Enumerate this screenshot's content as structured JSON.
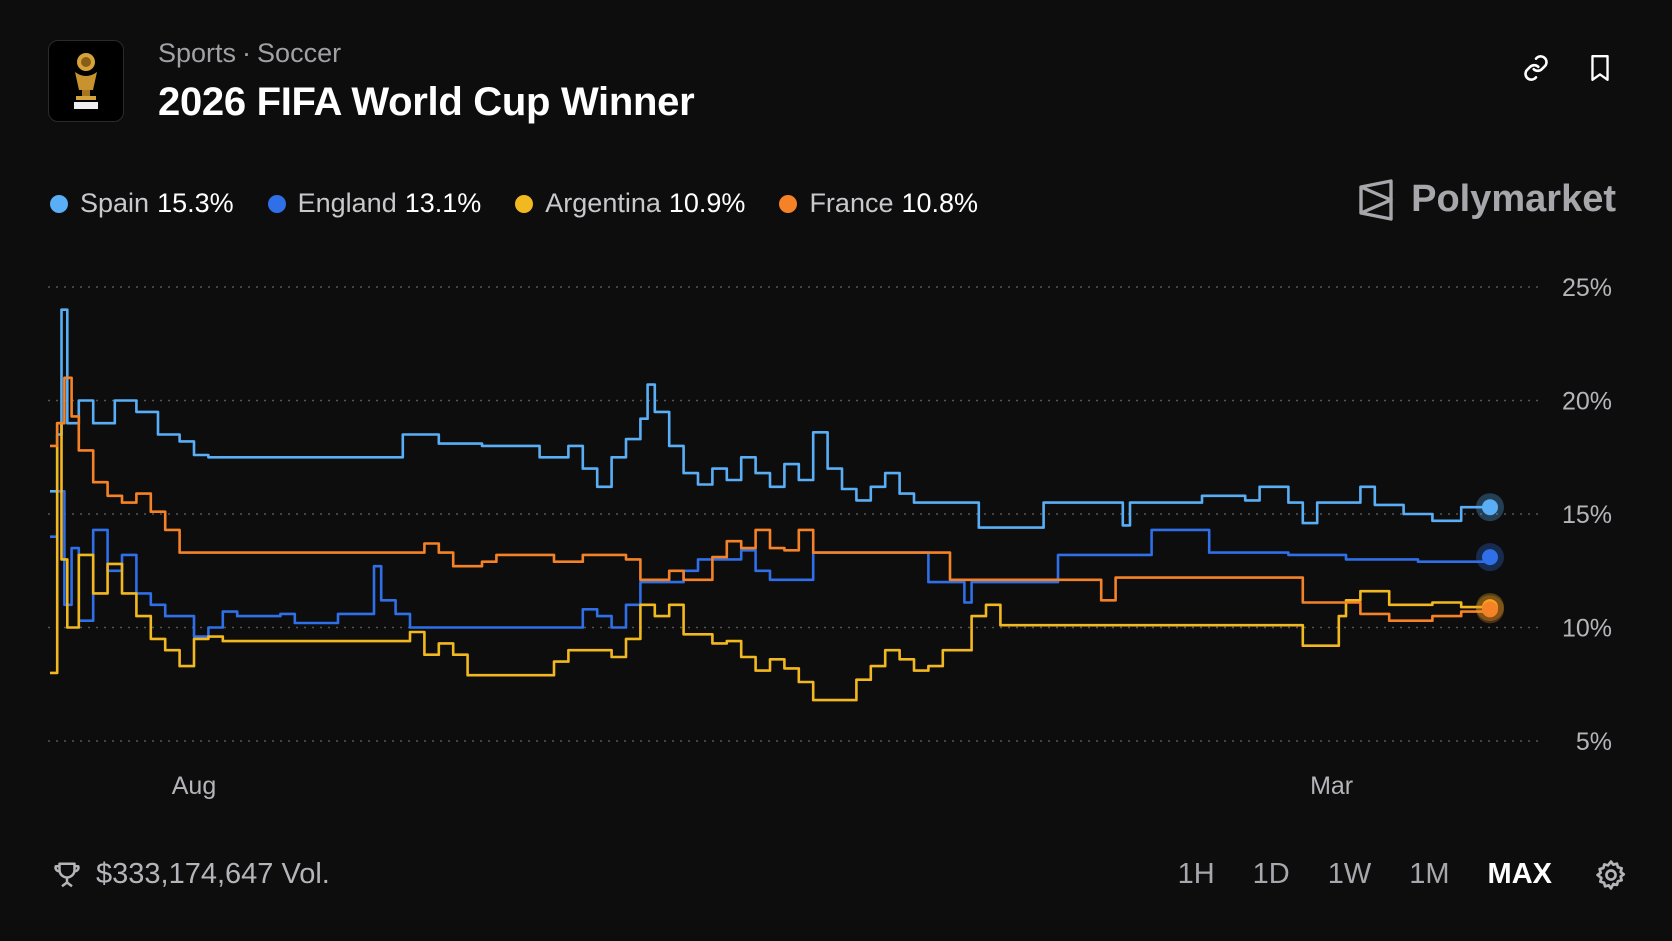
{
  "header": {
    "breadcrumb": [
      "Sports",
      "Soccer"
    ],
    "breadcrumb_separator": "·",
    "title": "2026 FIFA World Cup Winner",
    "icon": "trophy-icon",
    "actions": [
      {
        "name": "link-icon"
      },
      {
        "name": "bookmark-icon"
      }
    ]
  },
  "brand": {
    "name": "Polymarket",
    "icon": "polymarket-logo-icon"
  },
  "legend": [
    {
      "name": "Spain",
      "value": "15.3%",
      "color": "#5aaef5"
    },
    {
      "name": "England",
      "value": "13.1%",
      "color": "#2f6fe8"
    },
    {
      "name": "Argentina",
      "value": "10.9%",
      "color": "#f2b81f"
    },
    {
      "name": "France",
      "value": "10.8%",
      "color": "#f58226"
    }
  ],
  "footer": {
    "volume": "$333,174,647 Vol.",
    "volume_icon": "trophy-outline-icon",
    "ranges": [
      "1H",
      "1D",
      "1W",
      "1M",
      "MAX"
    ],
    "active_range": "MAX",
    "settings_icon": "gear-icon"
  },
  "chart_data": {
    "type": "line",
    "x_ticks": [
      {
        "label": "Aug",
        "x": 0.1
      },
      {
        "label": "Mar",
        "x": 0.89
      }
    ],
    "y_ticks": [
      "5%",
      "10%",
      "15%",
      "20%",
      "25%"
    ],
    "ylim": [
      5,
      25
    ],
    "xlim": [
      0,
      1
    ],
    "grid": "horizontal-dotted",
    "series": [
      {
        "name": "Spain",
        "color": "#5aaef5",
        "points": [
          [
            0,
            16
          ],
          [
            0.005,
            18.5
          ],
          [
            0.008,
            24
          ],
          [
            0.012,
            19
          ],
          [
            0.02,
            20
          ],
          [
            0.03,
            19
          ],
          [
            0.045,
            20
          ],
          [
            0.06,
            19.5
          ],
          [
            0.075,
            18.5
          ],
          [
            0.09,
            18.2
          ],
          [
            0.1,
            17.6
          ],
          [
            0.11,
            17.5
          ],
          [
            0.15,
            17.5
          ],
          [
            0.24,
            17.5
          ],
          [
            0.245,
            18.5
          ],
          [
            0.27,
            18.1
          ],
          [
            0.3,
            18
          ],
          [
            0.34,
            17.5
          ],
          [
            0.36,
            18
          ],
          [
            0.37,
            17
          ],
          [
            0.38,
            16.2
          ],
          [
            0.39,
            17.5
          ],
          [
            0.4,
            18.3
          ],
          [
            0.41,
            19.2
          ],
          [
            0.415,
            20.7
          ],
          [
            0.42,
            19.5
          ],
          [
            0.43,
            18
          ],
          [
            0.44,
            16.8
          ],
          [
            0.45,
            16.3
          ],
          [
            0.46,
            17
          ],
          [
            0.47,
            16.5
          ],
          [
            0.48,
            17.5
          ],
          [
            0.49,
            16.8
          ],
          [
            0.5,
            16.2
          ],
          [
            0.51,
            17.2
          ],
          [
            0.52,
            16.5
          ],
          [
            0.53,
            18.6
          ],
          [
            0.54,
            17
          ],
          [
            0.55,
            16.1
          ],
          [
            0.56,
            15.6
          ],
          [
            0.57,
            16.2
          ],
          [
            0.58,
            16.8
          ],
          [
            0.59,
            15.9
          ],
          [
            0.6,
            15.5
          ],
          [
            0.64,
            15.5
          ],
          [
            0.645,
            14.4
          ],
          [
            0.68,
            14.4
          ],
          [
            0.69,
            15.5
          ],
          [
            0.74,
            15.5
          ],
          [
            0.745,
            14.5
          ],
          [
            0.75,
            15.5
          ],
          [
            0.79,
            15.5
          ],
          [
            0.8,
            15.8
          ],
          [
            0.83,
            15.6
          ],
          [
            0.84,
            16.2
          ],
          [
            0.86,
            15.5
          ],
          [
            0.87,
            14.6
          ],
          [
            0.88,
            15.5
          ],
          [
            0.9,
            15.5
          ],
          [
            0.91,
            16.2
          ],
          [
            0.92,
            15.4
          ],
          [
            0.94,
            15
          ],
          [
            0.96,
            14.7
          ],
          [
            0.98,
            15.3
          ],
          [
            1,
            15.3
          ]
        ]
      },
      {
        "name": "England",
        "color": "#2f6fe8",
        "points": [
          [
            0,
            14
          ],
          [
            0.005,
            16
          ],
          [
            0.01,
            11
          ],
          [
            0.015,
            13.5
          ],
          [
            0.02,
            10.3
          ],
          [
            0.03,
            14.3
          ],
          [
            0.04,
            12.5
          ],
          [
            0.05,
            13.2
          ],
          [
            0.06,
            11.5
          ],
          [
            0.07,
            11
          ],
          [
            0.08,
            10.5
          ],
          [
            0.09,
            10.5
          ],
          [
            0.1,
            9.6
          ],
          [
            0.11,
            10
          ],
          [
            0.12,
            10.7
          ],
          [
            0.13,
            10.5
          ],
          [
            0.16,
            10.6
          ],
          [
            0.17,
            10.2
          ],
          [
            0.2,
            10.6
          ],
          [
            0.22,
            10.6
          ],
          [
            0.225,
            12.7
          ],
          [
            0.23,
            11.2
          ],
          [
            0.24,
            10.6
          ],
          [
            0.25,
            10
          ],
          [
            0.29,
            10
          ],
          [
            0.36,
            10
          ],
          [
            0.37,
            10.8
          ],
          [
            0.38,
            10.5
          ],
          [
            0.39,
            10
          ],
          [
            0.4,
            11
          ],
          [
            0.41,
            12
          ],
          [
            0.43,
            12
          ],
          [
            0.44,
            12.5
          ],
          [
            0.45,
            13
          ],
          [
            0.47,
            13
          ],
          [
            0.48,
            13.4
          ],
          [
            0.49,
            12.5
          ],
          [
            0.5,
            12.1
          ],
          [
            0.52,
            12.1
          ],
          [
            0.53,
            13.3
          ],
          [
            0.55,
            13.3
          ],
          [
            0.6,
            13.3
          ],
          [
            0.61,
            12
          ],
          [
            0.63,
            12
          ],
          [
            0.635,
            11.1
          ],
          [
            0.64,
            12
          ],
          [
            0.68,
            12
          ],
          [
            0.69,
            12
          ],
          [
            0.7,
            13.2
          ],
          [
            0.72,
            13.2
          ],
          [
            0.74,
            13.2
          ],
          [
            0.76,
            13.2
          ],
          [
            0.765,
            14.3
          ],
          [
            0.8,
            14.3
          ],
          [
            0.805,
            13.3
          ],
          [
            0.85,
            13.3
          ],
          [
            0.86,
            13.2
          ],
          [
            0.9,
            13
          ],
          [
            0.95,
            12.9
          ],
          [
            1,
            13.1
          ]
        ]
      },
      {
        "name": "Argentina",
        "color": "#f2b81f",
        "points": [
          [
            0,
            8
          ],
          [
            0.005,
            19
          ],
          [
            0.008,
            13
          ],
          [
            0.012,
            10
          ],
          [
            0.02,
            13.2
          ],
          [
            0.03,
            11.5
          ],
          [
            0.04,
            12.8
          ],
          [
            0.05,
            11.5
          ],
          [
            0.06,
            10.5
          ],
          [
            0.07,
            9.5
          ],
          [
            0.08,
            9
          ],
          [
            0.09,
            8.3
          ],
          [
            0.1,
            9.5
          ],
          [
            0.11,
            9.6
          ],
          [
            0.12,
            9.4
          ],
          [
            0.18,
            9.4
          ],
          [
            0.24,
            9.4
          ],
          [
            0.25,
            9.8
          ],
          [
            0.26,
            8.8
          ],
          [
            0.27,
            9.3
          ],
          [
            0.28,
            8.8
          ],
          [
            0.29,
            7.9
          ],
          [
            0.32,
            7.9
          ],
          [
            0.34,
            7.9
          ],
          [
            0.35,
            8.5
          ],
          [
            0.36,
            9
          ],
          [
            0.38,
            9
          ],
          [
            0.39,
            8.7
          ],
          [
            0.4,
            9.5
          ],
          [
            0.41,
            11
          ],
          [
            0.42,
            10.5
          ],
          [
            0.43,
            11
          ],
          [
            0.44,
            9.7
          ],
          [
            0.46,
            9.3
          ],
          [
            0.47,
            9.4
          ],
          [
            0.48,
            8.7
          ],
          [
            0.49,
            8.1
          ],
          [
            0.5,
            8.6
          ],
          [
            0.51,
            8.2
          ],
          [
            0.52,
            7.6
          ],
          [
            0.53,
            6.8
          ],
          [
            0.55,
            6.8
          ],
          [
            0.56,
            7.7
          ],
          [
            0.57,
            8.3
          ],
          [
            0.58,
            9
          ],
          [
            0.59,
            8.6
          ],
          [
            0.6,
            8.1
          ],
          [
            0.61,
            8.3
          ],
          [
            0.62,
            9
          ],
          [
            0.63,
            9
          ],
          [
            0.64,
            10.5
          ],
          [
            0.65,
            11
          ],
          [
            0.66,
            10.1
          ],
          [
            0.7,
            10.1
          ],
          [
            0.75,
            10.1
          ],
          [
            0.8,
            10.1
          ],
          [
            0.86,
            10.1
          ],
          [
            0.87,
            9.2
          ],
          [
            0.89,
            9.2
          ],
          [
            0.895,
            10.5
          ],
          [
            0.9,
            11.2
          ],
          [
            0.91,
            11.6
          ],
          [
            0.93,
            11
          ],
          [
            0.96,
            11.1
          ],
          [
            0.98,
            10.9
          ],
          [
            1,
            10.9
          ]
        ]
      },
      {
        "name": "France",
        "color": "#f58226",
        "points": [
          [
            0,
            18
          ],
          [
            0.005,
            19
          ],
          [
            0.01,
            21
          ],
          [
            0.015,
            19.3
          ],
          [
            0.02,
            17.8
          ],
          [
            0.03,
            16.4
          ],
          [
            0.04,
            15.8
          ],
          [
            0.05,
            15.5
          ],
          [
            0.06,
            15.9
          ],
          [
            0.07,
            15.1
          ],
          [
            0.08,
            14.3
          ],
          [
            0.09,
            13.3
          ],
          [
            0.12,
            13.3
          ],
          [
            0.18,
            13.3
          ],
          [
            0.25,
            13.3
          ],
          [
            0.26,
            13.7
          ],
          [
            0.27,
            13.3
          ],
          [
            0.28,
            12.7
          ],
          [
            0.3,
            12.9
          ],
          [
            0.31,
            13.2
          ],
          [
            0.33,
            13.2
          ],
          [
            0.35,
            12.9
          ],
          [
            0.37,
            13.2
          ],
          [
            0.39,
            13.2
          ],
          [
            0.4,
            13
          ],
          [
            0.41,
            12.1
          ],
          [
            0.43,
            12.5
          ],
          [
            0.44,
            12.1
          ],
          [
            0.45,
            12.1
          ],
          [
            0.46,
            13.1
          ],
          [
            0.47,
            13.8
          ],
          [
            0.48,
            13.5
          ],
          [
            0.49,
            14.3
          ],
          [
            0.5,
            13.5
          ],
          [
            0.51,
            13.4
          ],
          [
            0.52,
            14.3
          ],
          [
            0.53,
            13.3
          ],
          [
            0.55,
            13.3
          ],
          [
            0.6,
            13.3
          ],
          [
            0.62,
            13.3
          ],
          [
            0.625,
            12.1
          ],
          [
            0.7,
            12.1
          ],
          [
            0.72,
            12.1
          ],
          [
            0.73,
            11.2
          ],
          [
            0.74,
            12.2
          ],
          [
            0.8,
            12.2
          ],
          [
            0.86,
            12.2
          ],
          [
            0.87,
            11.1
          ],
          [
            0.9,
            11.1
          ],
          [
            0.91,
            10.6
          ],
          [
            0.93,
            10.3
          ],
          [
            0.96,
            10.5
          ],
          [
            0.98,
            10.7
          ],
          [
            1,
            10.8
          ]
        ]
      }
    ]
  }
}
